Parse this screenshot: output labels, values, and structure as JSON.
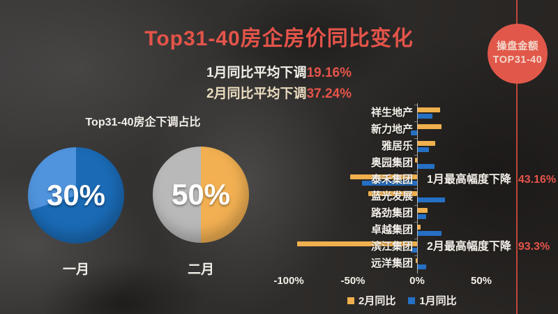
{
  "title": "Top31-40房企房价同比变化",
  "subtitles": [
    {
      "prefix": "1月同比平均下调",
      "value": "19.16%"
    },
    {
      "prefix": "2月同比平均下调",
      "value": "37.24%"
    }
  ],
  "badge": {
    "line1": "操盘金额",
    "line2": "TOP31-40"
  },
  "pie_section": {
    "title": "Top31-40房企下调占比",
    "pies": [
      {
        "label": "一月",
        "percent_text": "30%",
        "value": 30,
        "main_color": "#1a6ab5",
        "slice_color": "#4f94dd"
      },
      {
        "label": "二月",
        "percent_text": "50%",
        "value": 50,
        "main_color": "#f2b052",
        "slice_color": "#b9b9b9"
      }
    ]
  },
  "chart_data": {
    "type": "bar",
    "orientation": "horizontal",
    "categories": [
      "祥生地产",
      "新力地产",
      "雅居乐",
      "奥园集团",
      "泰禾集团",
      "蓝光发展",
      "路劲集团",
      "卓越集团",
      "滨江集团",
      "远洋集团"
    ],
    "series": [
      {
        "name": "2月同比",
        "color": "#f0b04e",
        "values": [
          18,
          19,
          14,
          -1.5,
          -52,
          -38,
          8,
          2.5,
          -93.3,
          -1
        ]
      },
      {
        "name": "1月同比",
        "color": "#2570c4",
        "values": [
          12,
          -5,
          9,
          13.5,
          -43.16,
          22,
          7,
          19,
          -5,
          7
        ]
      }
    ],
    "xlim": [
      -105,
      80
    ],
    "ticks": [
      "-100%",
      "-50%",
      "0%",
      "50%"
    ],
    "tick_values": [
      -100,
      -50,
      0,
      50
    ],
    "annotations": [
      {
        "row": 4,
        "text": "1月最高幅度下降",
        "value": "43.16%"
      },
      {
        "row": 8,
        "text": "2月最高幅度下降",
        "value": "93.3%"
      }
    ],
    "legend": [
      {
        "label": "2月同比",
        "color": "#f0b04e"
      },
      {
        "label": "1月同比",
        "color": "#2570c4"
      }
    ],
    "grid": false,
    "legend_position": "bottom"
  },
  "colors": {
    "accent_red": "#e4544a",
    "badge_bg": "#e1584a",
    "badge_text": "#f3d7cb",
    "white_text": "#f3efe9",
    "cream_text": "#eadcbf",
    "axis_line": "#d8d5d0",
    "vline": "#d94f41"
  }
}
